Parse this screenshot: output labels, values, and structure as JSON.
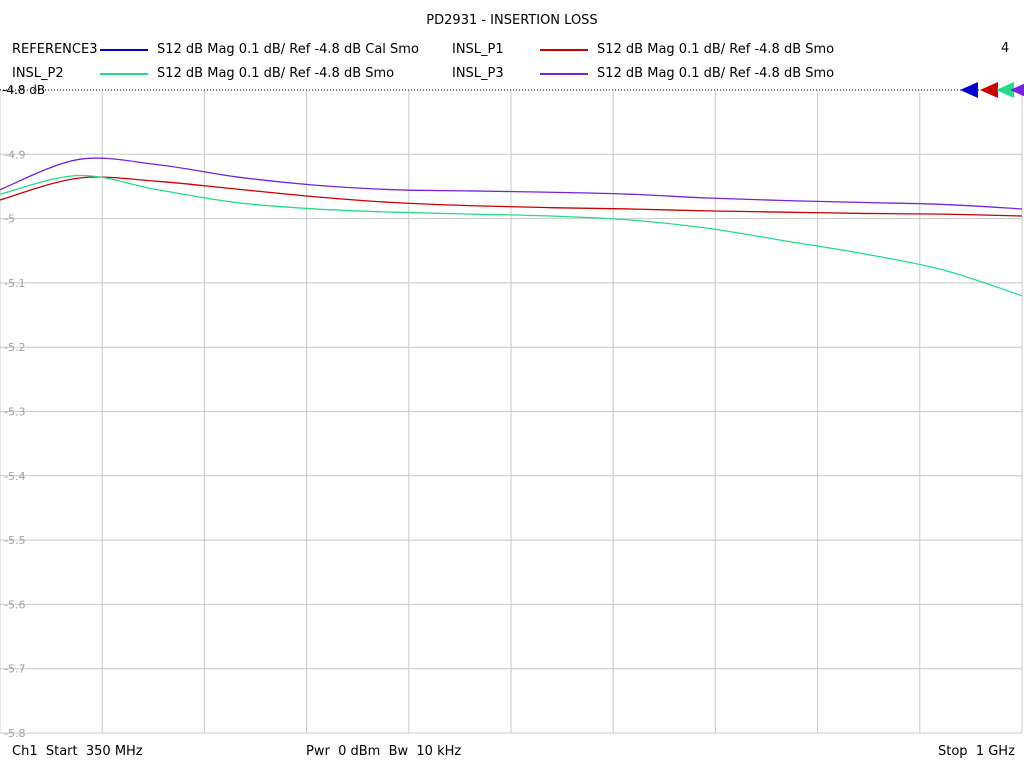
{
  "title": "PD2931 - INSERTION LOSS",
  "channel_count": "4",
  "ref_label": "-4.8 dB",
  "legend": [
    {
      "name": "REFERENCE3",
      "color": "#0000cc",
      "desc": "S12  dB Mag  0.1 dB/ Ref -4.8 dB  Cal Smo"
    },
    {
      "name": "INSL_P1",
      "color": "#cc0000",
      "desc": "S12  dB Mag  0.1 dB/ Ref -4.8 dB  Smo"
    },
    {
      "name": "INSL_P2",
      "color": "#22dd88",
      "desc": "S12  dB Mag  0.1 dB/ Ref -4.8 dB  Smo"
    },
    {
      "name": "INSL_P3",
      "color": "#7722dd",
      "desc": "S12  dB Mag  0.1 dB/ Ref -4.8 dB  Smo"
    }
  ],
  "footer": {
    "start": "Ch1  Start  350 MHz",
    "power": "Pwr  0 dBm  Bw  10 kHz",
    "stop": "Stop  1 GHz"
  },
  "chart_data": {
    "type": "line",
    "title": "PD2931 - INSERTION LOSS",
    "xlabel": "",
    "ylabel": "",
    "xlim": [
      350,
      1000
    ],
    "x_unit": "MHz",
    "ylim": [
      -5.8,
      -4.8
    ],
    "yticks": [
      "-4.8",
      "-4.9",
      "-5",
      "-5.1",
      "-5.2",
      "-5.3",
      "-5.4",
      "-5.5",
      "-5.6",
      "-5.7",
      "-5.8"
    ],
    "grid": true,
    "x": [
      350,
      400,
      450,
      500,
      550,
      600,
      650,
      700,
      750,
      800,
      850,
      900,
      950,
      1000
    ],
    "series": [
      {
        "name": "INSL_P1",
        "color": "#cc0000",
        "values": [
          -4.971,
          -4.937,
          -4.942,
          -4.954,
          -4.966,
          -4.975,
          -4.98,
          -4.983,
          -4.985,
          -4.988,
          -4.99,
          -4.992,
          -4.993,
          -4.996
        ]
      },
      {
        "name": "INSL_P2",
        "color": "#22dd88",
        "values": [
          -4.962,
          -4.933,
          -4.955,
          -4.975,
          -4.985,
          -4.99,
          -4.993,
          -4.996,
          -5.002,
          -5.015,
          -5.035,
          -5.055,
          -5.08,
          -5.12
        ]
      },
      {
        "name": "INSL_P3",
        "color": "#7722dd",
        "values": [
          -4.955,
          -4.908,
          -4.916,
          -4.935,
          -4.948,
          -4.955,
          -4.957,
          -4.959,
          -4.962,
          -4.968,
          -4.972,
          -4.975,
          -4.978,
          -4.985
        ]
      }
    ]
  }
}
